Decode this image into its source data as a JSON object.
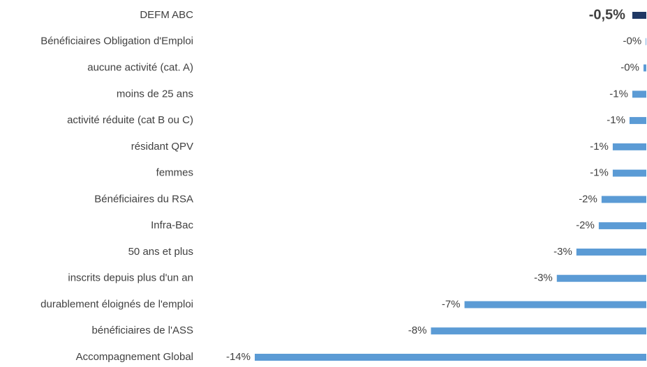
{
  "chart_data": {
    "type": "hbar",
    "categories": [
      "DEFM ABC",
      "Bénéficiaires Obligation d'Emploi",
      "aucune activité (cat. A)",
      "moins de 25 ans",
      "activité réduite (cat B ou C)",
      "résidant QPV",
      "femmes",
      "Bénéficiaires du RSA",
      "Infra-Bac",
      "50 ans et plus",
      "inscrits depuis plus d'un an",
      "durablement éloignés de l'emploi",
      "bénéficiaires de l'ASS",
      "Accompagnement Global"
    ],
    "values": [
      -0.5,
      -0.02,
      -0.1,
      -0.5,
      -0.6,
      -1.2,
      -1.2,
      -1.6,
      -1.7,
      -2.5,
      -3.2,
      -6.5,
      -7.7,
      -14
    ],
    "value_labels": [
      "-0,5%",
      "-0%",
      "-0%",
      "-1%",
      "-1%",
      "-1%",
      "-1%",
      "-2%",
      "-2%",
      "-3%",
      "-3%",
      "-7%",
      "-8%",
      "-14%"
    ],
    "colors": [
      "#1f3864",
      "#5b9bd5",
      "#5b9bd5",
      "#5b9bd5",
      "#5b9bd5",
      "#5b9bd5",
      "#5b9bd5",
      "#5b9bd5",
      "#5b9bd5",
      "#5b9bd5",
      "#5b9bd5",
      "#5b9bd5",
      "#5b9bd5",
      "#5b9bd5"
    ],
    "xlim": [
      -14,
      0
    ]
  }
}
